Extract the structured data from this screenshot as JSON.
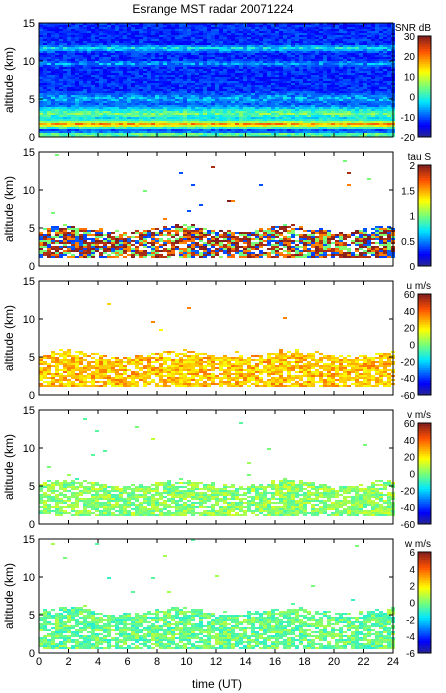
{
  "title": "Esrange MST radar 20071224",
  "xlabel": "time (UT)",
  "ylabel": "altitude (km)",
  "chart_data": [
    {
      "type": "heatmap",
      "quantity": "SNR",
      "colorbar_label": "SNR dB",
      "x_range": [
        0,
        24
      ],
      "y_range": [
        0,
        15
      ],
      "x_ticks": [
        "0",
        "2",
        "4",
        "6",
        "8",
        "10",
        "12",
        "14",
        "16",
        "18",
        "20",
        "22",
        "24"
      ],
      "y_ticks": [
        "0",
        "5",
        "10",
        "15"
      ],
      "cbar_range": [
        -20,
        30
      ],
      "cbar_ticks": [
        "-20",
        "-10",
        "0",
        "10",
        "20",
        "30"
      ],
      "pattern": {
        "fill": "full",
        "background_value": -12,
        "bands": [
          {
            "alt_center_km": 0.4,
            "width_km": 0.5,
            "value": 8
          },
          {
            "alt_center_km": 1.8,
            "width_km": 0.8,
            "value": 20
          },
          {
            "alt_center_km": 3.2,
            "width_km": 1.4,
            "value": 5
          },
          {
            "alt_center_km": 5.2,
            "width_km": 1.0,
            "value": -5
          },
          {
            "alt_center_km": 11.8,
            "width_km": 0.6,
            "value": -2
          },
          {
            "alt_center_km": 9.8,
            "width_km": 0.5,
            "value": -6
          }
        ]
      }
    },
    {
      "type": "heatmap",
      "quantity": "tau",
      "colorbar_label": "tau S",
      "x_range": [
        0,
        24
      ],
      "y_range": [
        0,
        15
      ],
      "x_ticks": [
        "0",
        "2",
        "4",
        "6",
        "8",
        "10",
        "12",
        "14",
        "16",
        "18",
        "20",
        "22",
        "24"
      ],
      "y_ticks": [
        "0",
        "5",
        "10",
        "15"
      ],
      "cbar_range": [
        0,
        2
      ],
      "cbar_ticks": [
        "0",
        "0.5",
        "1",
        "1.5",
        "2"
      ],
      "pattern": {
        "fill": "layer",
        "layer_bottom_km": 1.3,
        "layer_top_km": 5.0,
        "values": [
          0.4,
          1.0,
          1.6,
          1.9,
          2.0
        ]
      }
    },
    {
      "type": "heatmap",
      "quantity": "u",
      "colorbar_label": "u m/s",
      "x_range": [
        0,
        24
      ],
      "y_range": [
        0,
        15
      ],
      "x_ticks": [
        "0",
        "2",
        "4",
        "6",
        "8",
        "10",
        "12",
        "14",
        "16",
        "18",
        "20",
        "22",
        "24"
      ],
      "y_ticks": [
        "0",
        "5",
        "10",
        "15"
      ],
      "cbar_range": [
        -60,
        60
      ],
      "cbar_ticks": [
        "-60",
        "-40",
        "-20",
        "0",
        "20",
        "40",
        "60"
      ],
      "pattern": {
        "fill": "layer",
        "layer_bottom_km": 1.3,
        "layer_top_km": 5.5,
        "values": [
          18,
          24,
          28,
          35
        ]
      }
    },
    {
      "type": "heatmap",
      "quantity": "v",
      "colorbar_label": "v m/s",
      "x_range": [
        0,
        24
      ],
      "y_range": [
        0,
        15
      ],
      "x_ticks": [
        "0",
        "2",
        "4",
        "6",
        "8",
        "10",
        "12",
        "14",
        "16",
        "18",
        "20",
        "22",
        "24"
      ],
      "y_ticks": [
        "0",
        "5",
        "10",
        "15"
      ],
      "cbar_range": [
        -60,
        60
      ],
      "cbar_ticks": [
        "-60",
        "-40",
        "-20",
        "0",
        "20",
        "40",
        "60"
      ],
      "pattern": {
        "fill": "layer",
        "layer_bottom_km": 1.3,
        "layer_top_km": 5.5,
        "values": [
          -5,
          0,
          5,
          10
        ]
      }
    },
    {
      "type": "heatmap",
      "quantity": "w",
      "colorbar_label": "w m/s",
      "x_range": [
        0,
        24
      ],
      "y_range": [
        0,
        15
      ],
      "x_ticks": [
        "0",
        "2",
        "4",
        "6",
        "8",
        "10",
        "12",
        "14",
        "16",
        "18",
        "20",
        "22",
        "24"
      ],
      "y_ticks": [
        "0",
        "5",
        "10",
        "15"
      ],
      "cbar_range": [
        -6,
        6
      ],
      "cbar_ticks": [
        "-6",
        "-4",
        "-2",
        "0",
        "2",
        "4",
        "6"
      ],
      "pattern": {
        "fill": "layer",
        "layer_bottom_km": 0.6,
        "layer_top_km": 5.6,
        "values": [
          -1.0,
          -0.5,
          0.0,
          0.6
        ]
      }
    }
  ]
}
